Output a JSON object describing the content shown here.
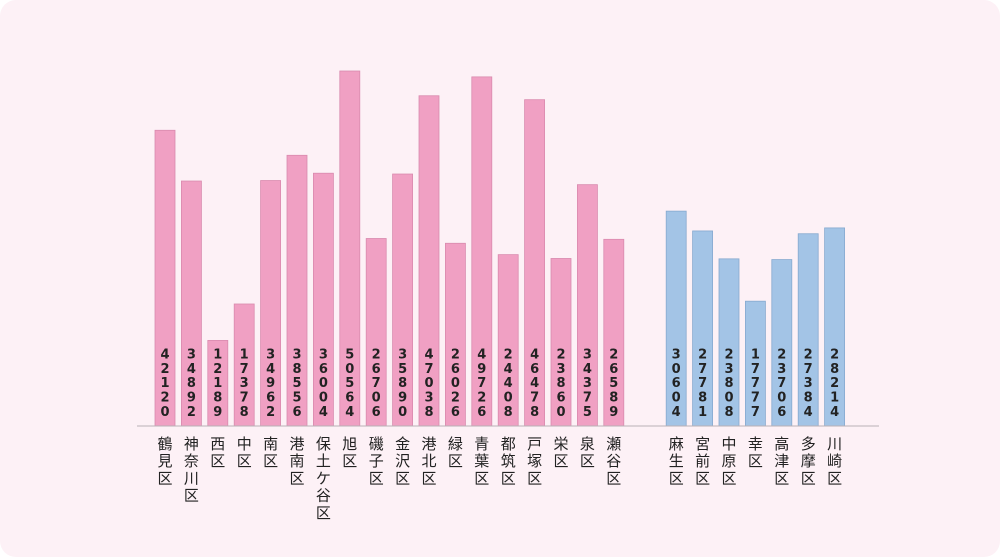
{
  "chart_data": {
    "type": "bar",
    "categories": [
      "鶴見区",
      "神奈川区",
      "西区",
      "中区",
      "南区",
      "港南区",
      "保土ケ谷区",
      "旭区",
      "磯子区",
      "金沢区",
      "港北区",
      "緑区",
      "青葉区",
      "都筑区",
      "戸塚区",
      "栄区",
      "泉区",
      "瀬谷区",
      "麻生区",
      "宮前区",
      "中原区",
      "幸区",
      "高津区",
      "多摩区",
      "川崎区"
    ],
    "values": [
      42120,
      34892,
      12189,
      17378,
      34962,
      38556,
      36004,
      50564,
      26706,
      35890,
      47038,
      26026,
      49726,
      24408,
      46478,
      23860,
      34375,
      26589,
      30604,
      27781,
      23808,
      17777,
      23706,
      27384,
      28214
    ],
    "groups": [
      {
        "count": 18,
        "color": "#f0a0c3",
        "stroke": "#d98aae"
      },
      {
        "count": 7,
        "color": "#a3c4e6",
        "stroke": "#86a9cf"
      }
    ],
    "ylim": [
      0,
      50564
    ],
    "grid": false,
    "xlabel": "",
    "ylabel": ""
  }
}
